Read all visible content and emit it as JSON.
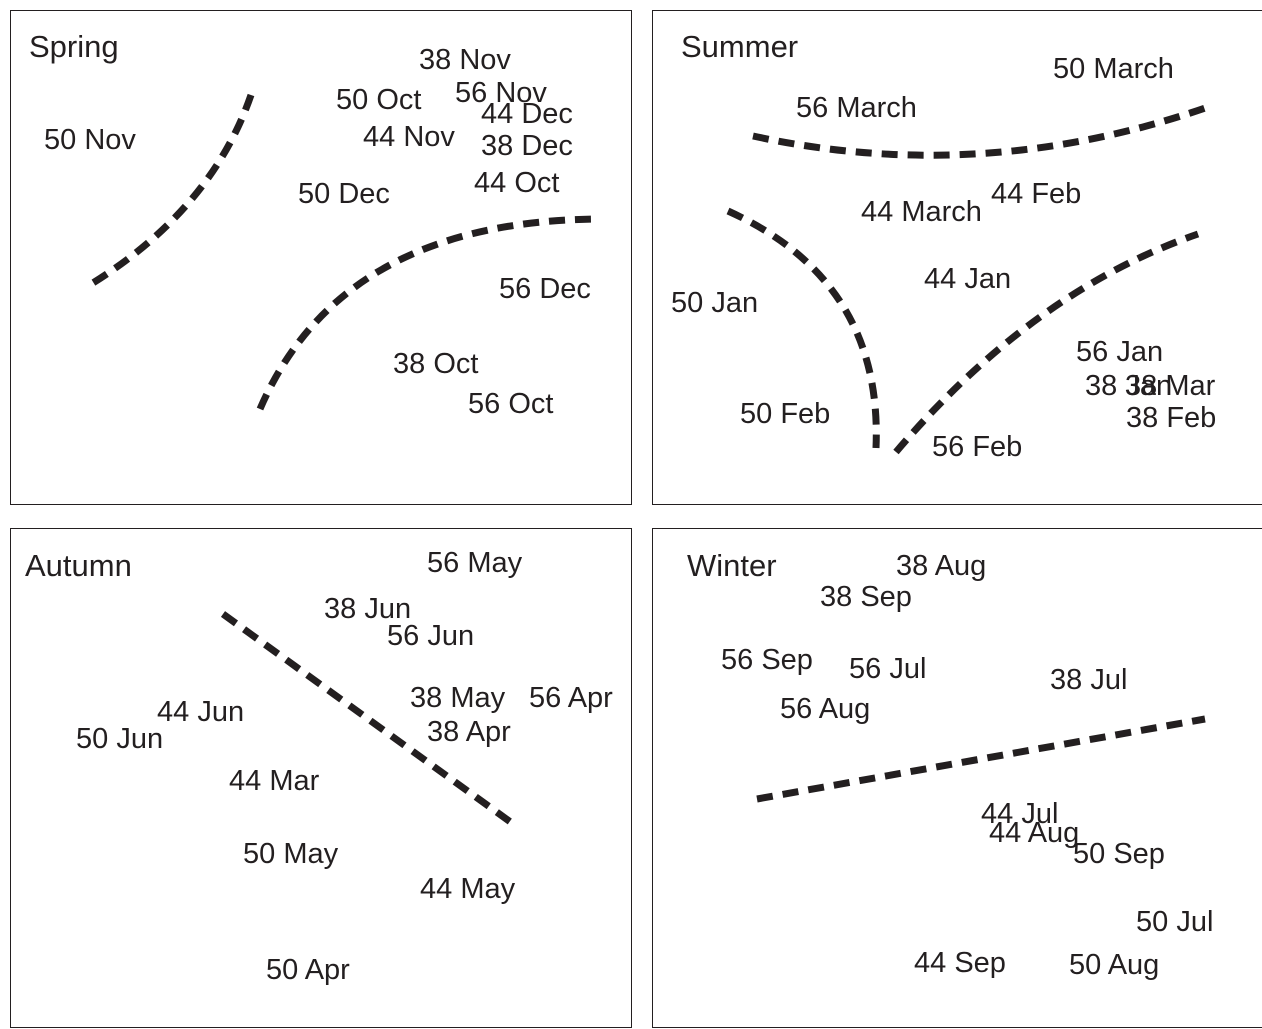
{
  "colors": {
    "ink": "#231f20",
    "background": "#ffffff"
  },
  "panels": [
    {
      "title": "Spring",
      "labels": [
        "38 Nov",
        "50 Oct",
        "56 Nov",
        "44 Dec",
        "50 Nov",
        "44 Nov",
        "38 Dec",
        "44 Oct",
        "50 Dec",
        "56 Dec",
        "38 Oct",
        "56 Oct"
      ]
    },
    {
      "title": "Summer",
      "labels": [
        "50 March",
        "56 March",
        "44 March",
        "44 Feb",
        "44 Jan",
        "50 Jan",
        "56 Jan",
        "38 Jan",
        "38 Mar",
        "38 Feb",
        "50 Feb",
        "56 Feb"
      ]
    },
    {
      "title": "Autumn",
      "labels": [
        "56 May",
        "38 Jun",
        "56 Jun",
        "38 May",
        "56 Apr",
        "38 Apr",
        "44 Jun",
        "50 Jun",
        "44 Mar",
        "50 May",
        "44 May",
        "50 Apr"
      ]
    },
    {
      "title": "Winter",
      "labels": [
        "38 Aug",
        "38 Sep",
        "56 Sep",
        "56 Jul",
        "38 Jul",
        "56 Aug",
        "44 Jul",
        "44 Aug",
        "50 Sep",
        "50 Jul",
        "44 Sep",
        "50 Aug"
      ]
    }
  ]
}
